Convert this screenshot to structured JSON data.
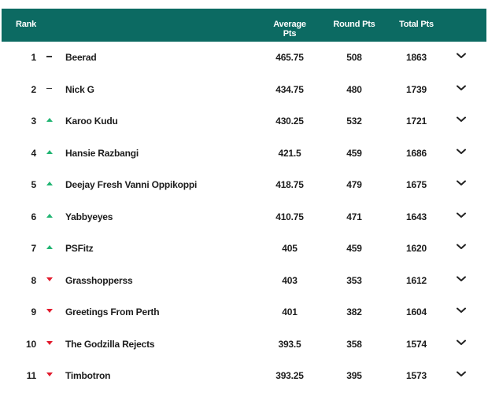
{
  "header": {
    "rank": "Rank",
    "average": "Average Pts",
    "round": "Round Pts",
    "total": "Total Pts"
  },
  "colors": {
    "header_bg": "#0c6a62",
    "up": "#22b573",
    "down": "#e21b2d"
  },
  "rows": [
    {
      "rank": "1",
      "trend": "same",
      "name": "Beerad",
      "avg": "465.75",
      "round": "508",
      "total": "1863"
    },
    {
      "rank": "2",
      "trend": "same",
      "name": "Nick G",
      "avg": "434.75",
      "round": "480",
      "total": "1739"
    },
    {
      "rank": "3",
      "trend": "up",
      "name": "Karoo Kudu",
      "avg": "430.25",
      "round": "532",
      "total": "1721"
    },
    {
      "rank": "4",
      "trend": "up",
      "name": "Hansie Razbangi",
      "avg": "421.5",
      "round": "459",
      "total": "1686"
    },
    {
      "rank": "5",
      "trend": "up",
      "name": "Deejay Fresh Vanni Oppikoppi",
      "avg": "418.75",
      "round": "479",
      "total": "1675"
    },
    {
      "rank": "6",
      "trend": "up",
      "name": "Yabbyeyes",
      "avg": "410.75",
      "round": "471",
      "total": "1643"
    },
    {
      "rank": "7",
      "trend": "up",
      "name": "PSFitz",
      "avg": "405",
      "round": "459",
      "total": "1620"
    },
    {
      "rank": "8",
      "trend": "down",
      "name": "Grasshopperss",
      "avg": "403",
      "round": "353",
      "total": "1612"
    },
    {
      "rank": "9",
      "trend": "down",
      "name": "Greetings From Perth",
      "avg": "401",
      "round": "382",
      "total": "1604"
    },
    {
      "rank": "10",
      "trend": "down",
      "name": "The Godzilla Rejects",
      "avg": "393.5",
      "round": "358",
      "total": "1574"
    },
    {
      "rank": "11",
      "trend": "down",
      "name": "Timbotron",
      "avg": "393.25",
      "round": "395",
      "total": "1573"
    }
  ],
  "icons": {
    "expand": "chevron-down-icon",
    "trend_same": "dash-icon",
    "trend_up": "triangle-up-icon",
    "trend_down": "triangle-down-icon"
  }
}
